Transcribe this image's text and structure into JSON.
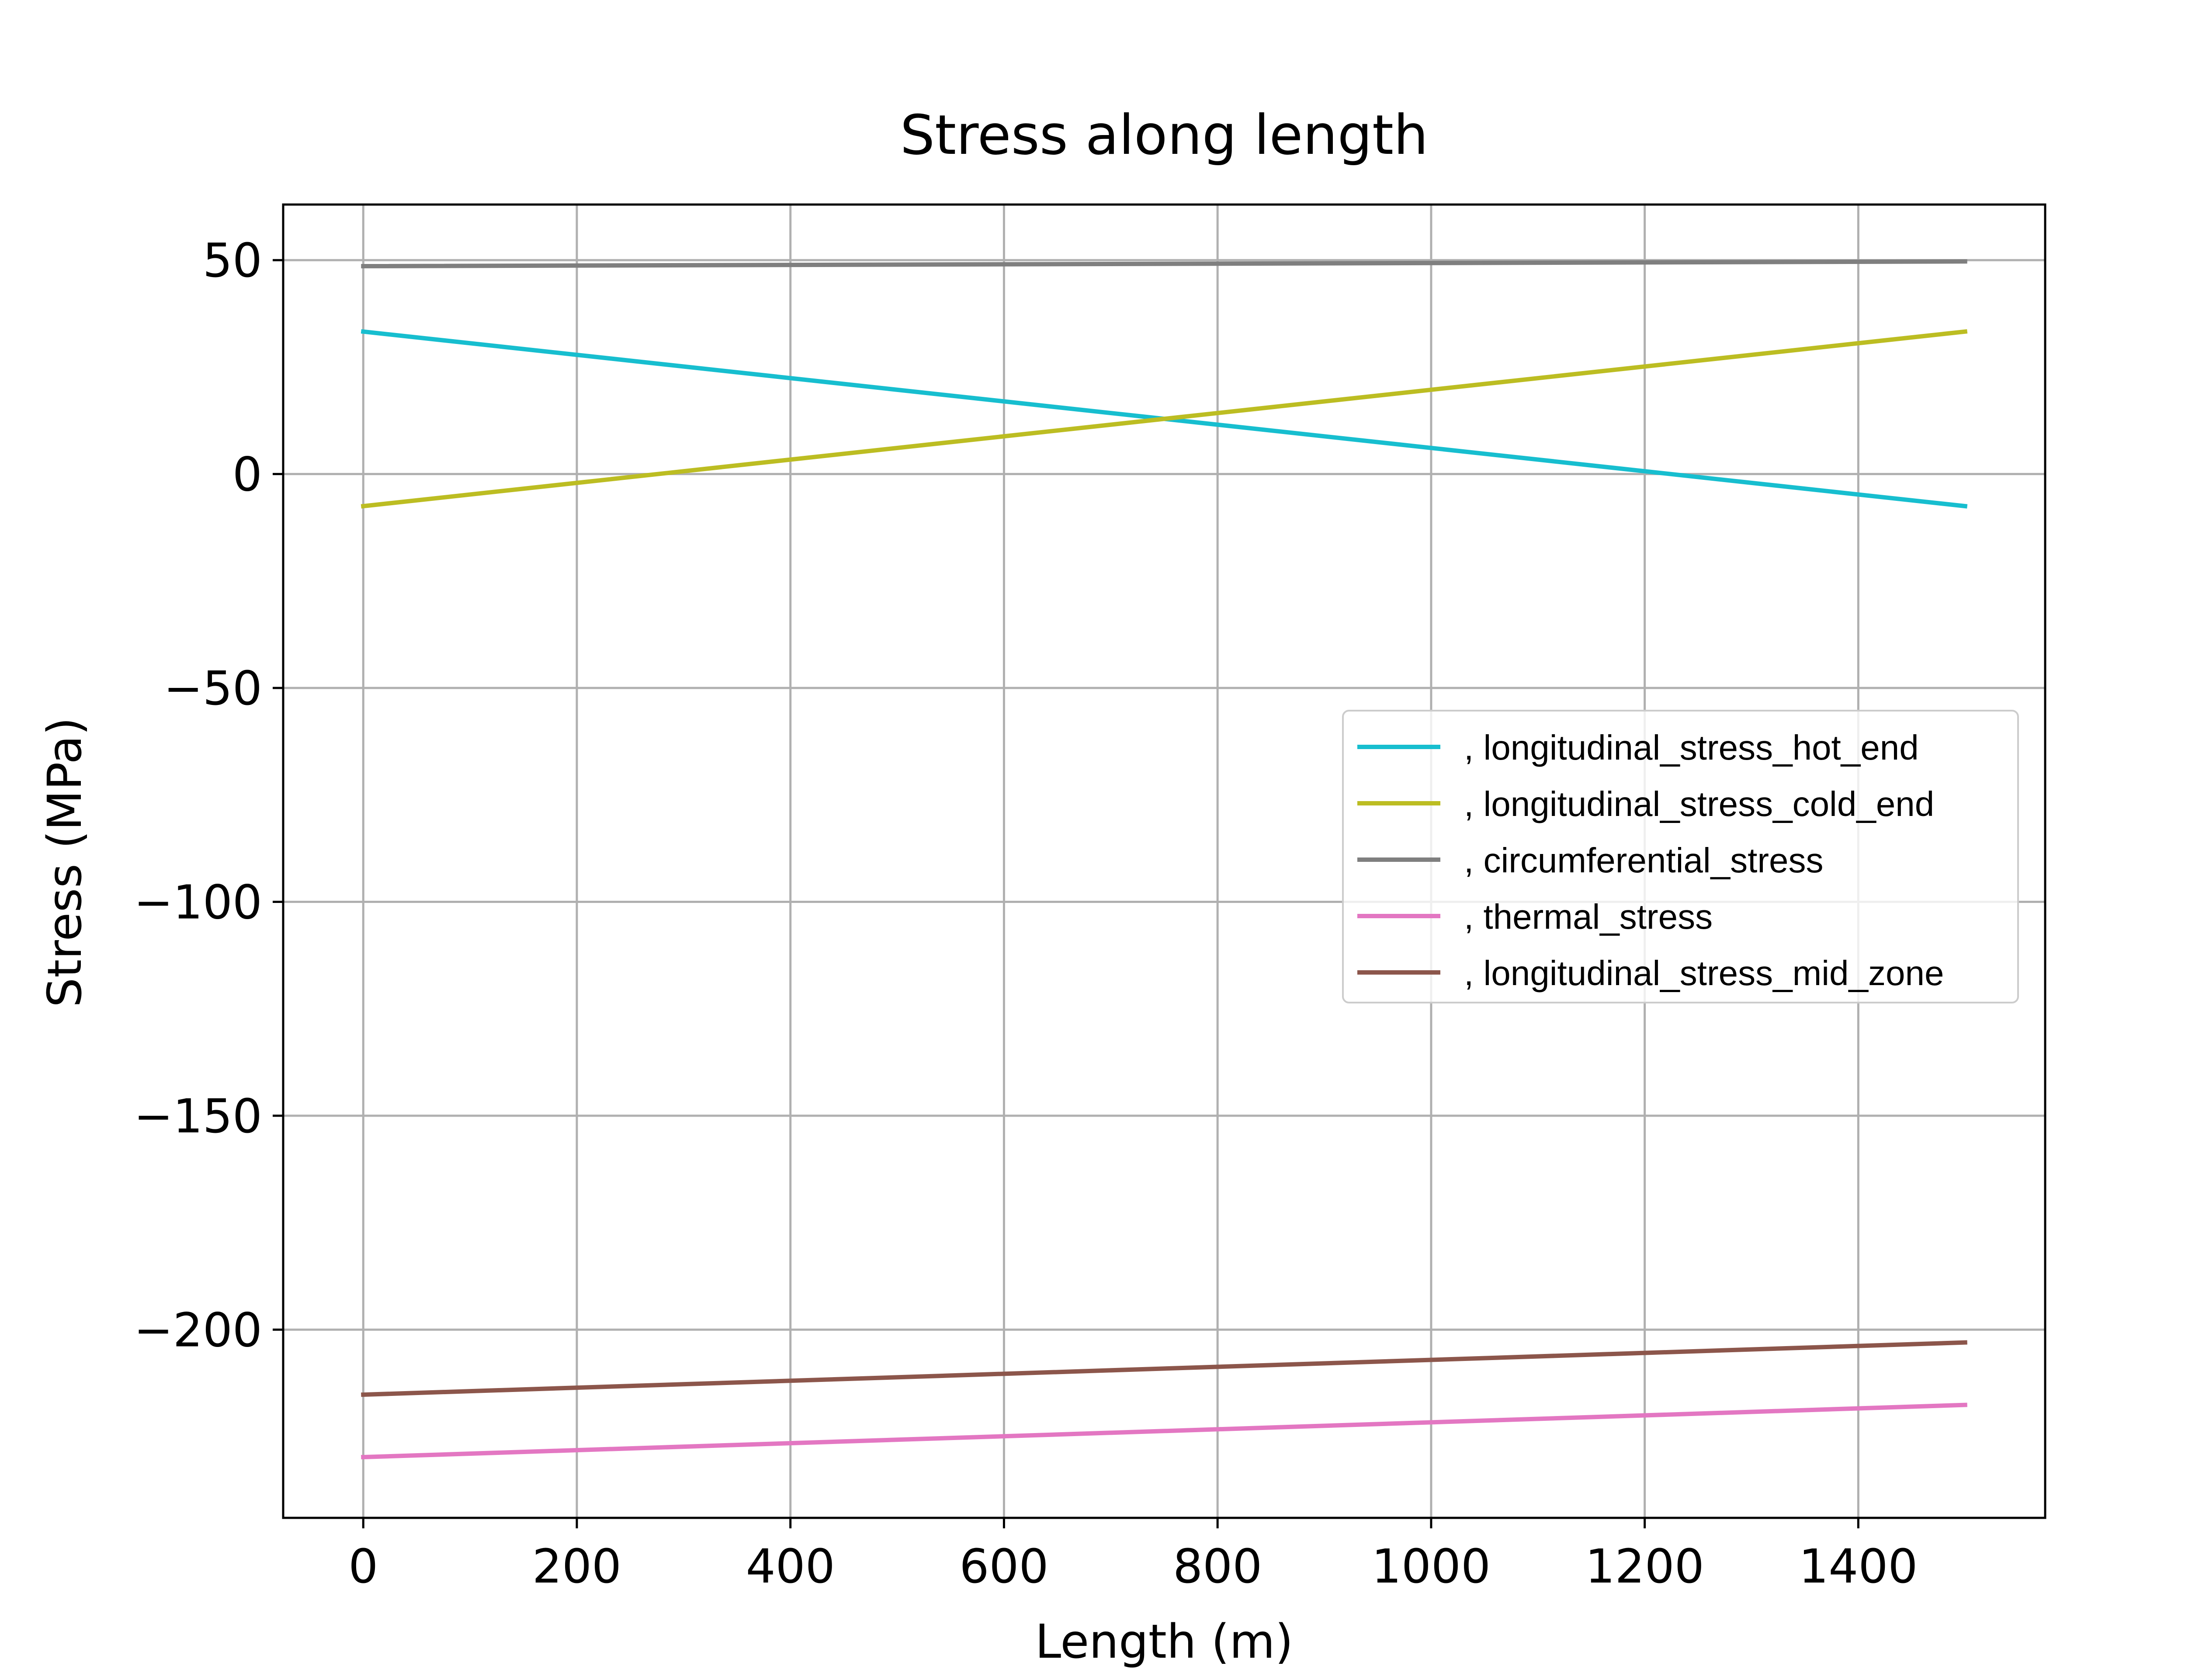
{
  "chart_data": {
    "type": "line",
    "title": "Stress along length",
    "xlabel": "Length (m)",
    "ylabel": "Stress (MPa)",
    "xlim": [
      -75,
      1575
    ],
    "ylim": [
      -244,
      63
    ],
    "xticks": [
      0,
      200,
      400,
      600,
      800,
      1000,
      1200,
      1400
    ],
    "yticks": [
      50,
      0,
      -50,
      -100,
      -150,
      -200
    ],
    "xtick_labels": [
      "0",
      "200",
      "400",
      "600",
      "800",
      "1000",
      "1200",
      "1400"
    ],
    "ytick_labels": [
      "50",
      "0",
      "−50",
      "−100",
      "−150",
      "−200"
    ],
    "grid": true,
    "legend_position": "center-right",
    "series": [
      {
        "name": ", longitudinal_stress_hot_end",
        "color": "#17becf",
        "x": [
          0,
          1500
        ],
        "y": [
          33.3,
          -7.5
        ]
      },
      {
        "name": ", longitudinal_stress_cold_end",
        "color": "#bcbd22",
        "x": [
          0,
          1500
        ],
        "y": [
          -7.5,
          33.3
        ]
      },
      {
        "name": ", circumferential_stress",
        "color": "#7f7f7f",
        "x": [
          0,
          1500
        ],
        "y": [
          48.6,
          49.7
        ]
      },
      {
        "name": ", thermal_stress",
        "color": "#e377c2",
        "x": [
          0,
          1500
        ],
        "y": [
          -229.8,
          -217.6
        ]
      },
      {
        "name": ", longitudinal_stress_mid_zone",
        "color": "#8c564b",
        "x": [
          0,
          1500
        ],
        "y": [
          -215.2,
          -203.0
        ]
      }
    ]
  }
}
